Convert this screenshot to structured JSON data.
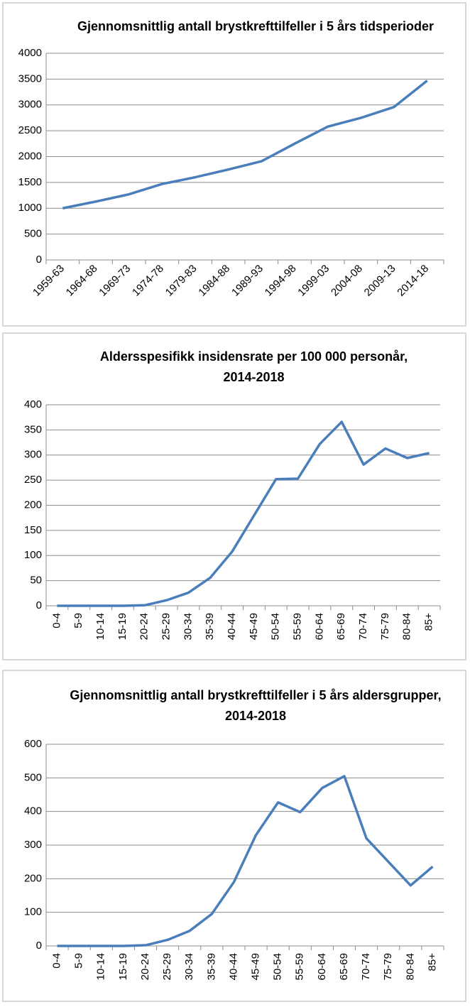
{
  "chart_data": [
    {
      "type": "line",
      "title": [
        "Gjennomsnittlig antall brystkrefttilfeller i 5 års tidsperioder"
      ],
      "categories": [
        "1959-63",
        "1964-68",
        "1969-73",
        "1974-78",
        "1979-83",
        "1984-88",
        "1989-93",
        "1994-98",
        "1999-03",
        "2004-08",
        "2009-13",
        "2014-18"
      ],
      "values": [
        1000,
        1130,
        1270,
        1470,
        1600,
        1750,
        1910,
        2250,
        2580,
        2750,
        2960,
        3470
      ],
      "color": "#4a7ebb",
      "ylim": [
        0,
        4000
      ],
      "yticks": [
        0,
        500,
        1000,
        1500,
        2000,
        2500,
        3000,
        3500,
        4000
      ],
      "grid": true
    },
    {
      "type": "line",
      "title": [
        "Aldersspesifikk insidensrate per 100 000 personår,",
        "2014-2018"
      ],
      "categories": [
        "0-4",
        "5-9",
        "10-14",
        "15-19",
        "20-24",
        "25-29",
        "30-34",
        "35-39",
        "40-44",
        "45-49",
        "50-54",
        "55-59",
        "60-64",
        "65-69",
        "70-74",
        "75-79",
        "80-84",
        "85+"
      ],
      "values": [
        0,
        0,
        0,
        0,
        1,
        11,
        26,
        56,
        108,
        180,
        252,
        253,
        322,
        366,
        281,
        313,
        294,
        304
      ],
      "color": "#4a7ebb",
      "ylim": [
        0,
        400
      ],
      "yticks": [
        0,
        50,
        100,
        150,
        200,
        250,
        300,
        350,
        400
      ],
      "grid": true
    },
    {
      "type": "line",
      "title": [
        "Gjennomsnittlig antall brystkrefttilfeller i 5 års aldersgrupper,",
        "2014-2018"
      ],
      "categories": [
        "0-4",
        "5-9",
        "10-14",
        "15-19",
        "20-24",
        "25-29",
        "30-34",
        "35-39",
        "40-44",
        "45-49",
        "50-54",
        "55-59",
        "60-64",
        "65-69",
        "70-74",
        "75-79",
        "80-84",
        "85+"
      ],
      "values": [
        0,
        0,
        0,
        0,
        2,
        18,
        45,
        95,
        190,
        330,
        427,
        398,
        470,
        505,
        320,
        250,
        180,
        236
      ],
      "color": "#4a7ebb",
      "ylim": [
        0,
        600
      ],
      "yticks": [
        0,
        100,
        200,
        300,
        400,
        500,
        600
      ],
      "grid": true
    }
  ]
}
